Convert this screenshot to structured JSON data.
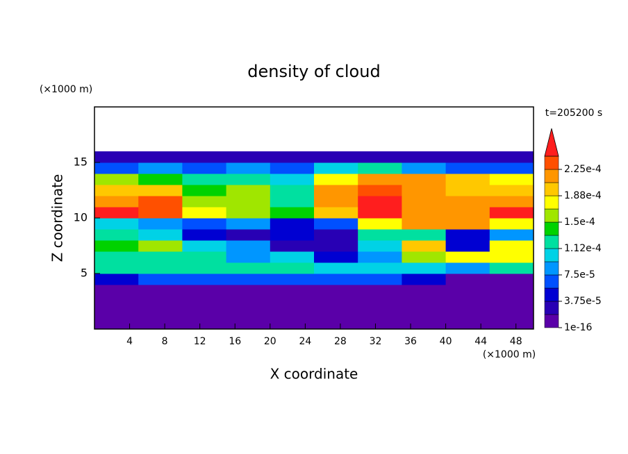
{
  "chart_data": {
    "type": "contour",
    "title": "density of cloud",
    "x_label": "X coordinate",
    "y_label": "Z coordinate",
    "x_unit": "(×1000 m)",
    "y_unit": "(×1000 m)",
    "annotation": "t=205200 s",
    "xlim": [
      0,
      50
    ],
    "ylim": [
      0,
      20
    ],
    "xticks": [
      4,
      8,
      12,
      16,
      20,
      24,
      28,
      32,
      36,
      40,
      44,
      48
    ],
    "yticks": [
      5,
      10,
      15
    ],
    "x": [
      0,
      5,
      10,
      15,
      20,
      25,
      30,
      35,
      40,
      45,
      50
    ],
    "z": [
      0,
      1,
      2,
      3,
      4,
      5,
      6,
      7,
      8,
      9,
      10,
      11,
      12,
      13,
      14,
      15,
      16
    ],
    "values": [
      [
        0,
        0,
        0,
        0,
        0,
        0,
        0,
        0,
        0,
        0
      ],
      [
        0,
        0,
        0,
        0,
        0,
        0,
        0,
        0,
        0,
        0
      ],
      [
        0,
        0,
        0,
        0,
        0,
        0,
        0,
        0,
        0,
        0
      ],
      [
        0,
        0,
        0,
        0,
        0,
        0,
        0,
        0,
        0,
        0
      ],
      [
        5e-05,
        6e-05,
        6e-05,
        7e-05,
        7e-05,
        6e-05,
        6e-05,
        4e-05,
        1e-05,
        1e-05
      ],
      [
        0.00012,
        0.00012,
        0.00012,
        0.00013,
        0.00013,
        0.00011,
        0.0001,
        0.0001,
        9e-05,
        0.00012
      ],
      [
        0.00013,
        0.00013,
        0.00012,
        9e-05,
        0.0001,
        5e-05,
        8e-05,
        0.00015,
        0.00018,
        0.00018
      ],
      [
        0.00014,
        0.00016,
        0.0001,
        8e-05,
        3e-05,
        2e-05,
        0.0001,
        0.0002,
        4e-05,
        0.00017
      ],
      [
        0.00012,
        0.0001,
        4e-05,
        3e-05,
        4e-05,
        2e-05,
        0.00012,
        0.00013,
        5e-05,
        8e-05
      ],
      [
        0.0001,
        8e-05,
        6e-05,
        8e-05,
        5e-05,
        6e-05,
        0.00018,
        0.00022,
        0.00021,
        0.00018
      ],
      [
        0.00025,
        0.00024,
        0.00017,
        0.00016,
        0.00014,
        0.0002,
        0.00025,
        0.00022,
        0.00022,
        0.00025
      ],
      [
        0.00022,
        0.00023,
        0.00015,
        0.00016,
        0.00013,
        0.00022,
        0.00025,
        0.00022,
        0.00021,
        0.00022
      ],
      [
        0.0002,
        0.00019,
        0.00014,
        0.00015,
        0.00012,
        0.00021,
        0.00023,
        0.00022,
        0.0002,
        0.0002
      ],
      [
        0.00015,
        0.00014,
        0.00013,
        0.00012,
        0.0001,
        0.00018,
        0.00021,
        0.00021,
        0.00019,
        0.00017
      ],
      [
        6e-05,
        8e-05,
        6e-05,
        8e-05,
        6e-05,
        0.0001,
        0.00012,
        8e-05,
        6e-05,
        6e-05
      ],
      [
        2e-05,
        2e-05,
        2e-05,
        2e-05,
        2e-05,
        2e-05,
        2e-05,
        2e-05,
        2e-05,
        2e-05
      ]
    ],
    "levels": [
      1e-16,
      1.875e-05,
      3.75e-05,
      5.625e-05,
      7.5e-05,
      9.375e-05,
      0.0001125,
      0.00013125,
      0.00015,
      0.00016875,
      0.0001875,
      0.00020625,
      0.000225,
      0.00024375
    ],
    "colors": [
      "#5a00a8",
      "#2800b4",
      "#0000d2",
      "#0050ff",
      "#0096ff",
      "#00d2e6",
      "#00e0a0",
      "#00d200",
      "#a0e600",
      "#ffff00",
      "#ffc800",
      "#ff9600",
      "#ff5000",
      "#ff1e1e",
      "#f5a0a0"
    ],
    "colorbar_ticks": [
      1e-16,
      {
        "value": 3.75e-05,
        "label": "3.75e-5"
      },
      {
        "value": 7.5e-05,
        "label": "7.5e-5"
      },
      {
        "value": 0.0001125,
        "label": "1.12e-4"
      },
      {
        "value": 0.00015,
        "label": "1.5e-4"
      },
      {
        "value": 0.0001875,
        "label": "1.88e-4"
      },
      {
        "value": 0.000225,
        "label": "2.25e-4"
      }
    ]
  }
}
